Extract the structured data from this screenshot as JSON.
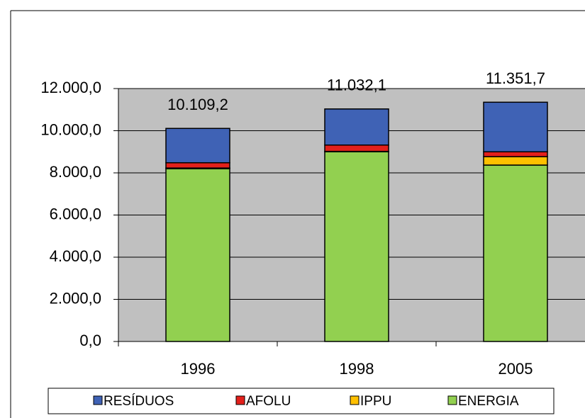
{
  "chart_data": {
    "type": "stacked-bar",
    "categories": [
      "1996",
      "1998",
      "2005"
    ],
    "series": [
      {
        "name": "ENERGIA",
        "color": "#92d050",
        "values": [
          8200,
          9000,
          8370
        ]
      },
      {
        "name": "IPPU",
        "color": "#ffc000",
        "values": [
          30,
          20,
          400
        ]
      },
      {
        "name": "AFOLU",
        "color": "#e3201b",
        "values": [
          250,
          300,
          230
        ]
      },
      {
        "name": "RESÍDUOS",
        "color": "#3f62b5",
        "values": [
          1629.2,
          1712.1,
          2351.7
        ]
      }
    ],
    "totals": [
      10109.2,
      11032.1,
      11351.7
    ],
    "total_labels": [
      "10.109,2",
      "11.032,1",
      "11.351,7"
    ],
    "ylim": [
      0,
      12000
    ],
    "yticks": [
      {
        "value": 0,
        "label": "0,0"
      },
      {
        "value": 2000,
        "label": "2.000,0"
      },
      {
        "value": 4000,
        "label": "4.000,0"
      },
      {
        "value": 6000,
        "label": "6.000,0"
      },
      {
        "value": 8000,
        "label": "8.000,0"
      },
      {
        "value": 10000,
        "label": "10.000,0"
      },
      {
        "value": 12000,
        "label": "12.000,0"
      }
    ],
    "grid": true,
    "legend_order": [
      "RESÍDUOS",
      "AFOLU",
      "IPPU",
      "ENERGIA"
    ]
  }
}
